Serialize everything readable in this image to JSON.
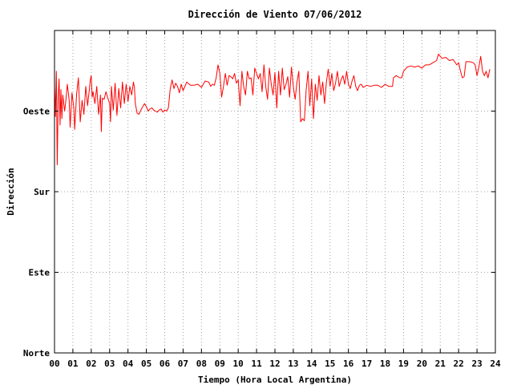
{
  "chart_data": {
    "type": "line",
    "title": "Dirección de Viento 07/06/2012",
    "xlabel": "Tiempo (Hora Local Argentina)",
    "ylabel": "Dirección",
    "xlim": [
      0,
      24
    ],
    "ylim": [
      0,
      300
    ],
    "x_ticks": [
      {
        "value": 0,
        "label": "00"
      },
      {
        "value": 1,
        "label": "01"
      },
      {
        "value": 2,
        "label": "02"
      },
      {
        "value": 3,
        "label": "03"
      },
      {
        "value": 4,
        "label": "04"
      },
      {
        "value": 5,
        "label": "05"
      },
      {
        "value": 6,
        "label": "06"
      },
      {
        "value": 7,
        "label": "07"
      },
      {
        "value": 8,
        "label": "08"
      },
      {
        "value": 9,
        "label": "09"
      },
      {
        "value": 10,
        "label": "10"
      },
      {
        "value": 11,
        "label": "11"
      },
      {
        "value": 12,
        "label": "12"
      },
      {
        "value": 13,
        "label": "13"
      },
      {
        "value": 14,
        "label": "14"
      },
      {
        "value": 15,
        "label": "15"
      },
      {
        "value": 16,
        "label": "16"
      },
      {
        "value": 17,
        "label": "17"
      },
      {
        "value": 18,
        "label": "18"
      },
      {
        "value": 19,
        "label": "19"
      },
      {
        "value": 20,
        "label": "20"
      },
      {
        "value": 21,
        "label": "21"
      },
      {
        "value": 22,
        "label": "22"
      },
      {
        "value": 23,
        "label": "23"
      },
      {
        "value": 24,
        "label": "24"
      }
    ],
    "y_ticks": [
      {
        "value": 0,
        "label": "Norte"
      },
      {
        "value": 75,
        "label": "Este"
      },
      {
        "value": 150,
        "label": "Sur"
      },
      {
        "value": 225,
        "label": "Oeste"
      }
    ],
    "grid": true,
    "line_color": "#ff0000",
    "series": [
      {
        "points": [
          [
            0.0,
            248
          ],
          [
            0.05,
            220
          ],
          [
            0.1,
            262
          ],
          [
            0.15,
            175
          ],
          [
            0.2,
            238
          ],
          [
            0.25,
            255
          ],
          [
            0.3,
            212
          ],
          [
            0.35,
            245
          ],
          [
            0.4,
            218
          ],
          [
            0.45,
            240
          ],
          [
            0.55,
            225
          ],
          [
            0.6,
            232
          ],
          [
            0.7,
            250
          ],
          [
            0.8,
            235
          ],
          [
            0.85,
            210
          ],
          [
            0.95,
            242
          ],
          [
            1.05,
            228
          ],
          [
            1.1,
            208
          ],
          [
            1.2,
            240
          ],
          [
            1.3,
            256
          ],
          [
            1.4,
            215
          ],
          [
            1.5,
            235
          ],
          [
            1.6,
            222
          ],
          [
            1.7,
            248
          ],
          [
            1.8,
            230
          ],
          [
            1.95,
            254
          ],
          [
            2.0,
            258
          ],
          [
            2.05,
            238
          ],
          [
            2.1,
            243
          ],
          [
            2.2,
            232
          ],
          [
            2.3,
            248
          ],
          [
            2.4,
            222
          ],
          [
            2.5,
            240
          ],
          [
            2.55,
            206
          ],
          [
            2.6,
            237
          ],
          [
            2.7,
            236
          ],
          [
            2.8,
            243
          ],
          [
            2.9,
            237
          ],
          [
            3.0,
            232
          ],
          [
            3.05,
            215
          ],
          [
            3.1,
            248
          ],
          [
            3.2,
            226
          ],
          [
            3.3,
            251
          ],
          [
            3.4,
            221
          ],
          [
            3.5,
            246
          ],
          [
            3.6,
            228
          ],
          [
            3.7,
            252
          ],
          [
            3.8,
            232
          ],
          [
            3.9,
            250
          ],
          [
            4.0,
            234
          ],
          [
            4.1,
            248
          ],
          [
            4.2,
            240
          ],
          [
            4.3,
            252
          ],
          [
            4.35,
            247
          ],
          [
            4.4,
            232
          ],
          [
            4.5,
            223
          ],
          [
            4.6,
            222
          ],
          [
            4.7,
            226
          ],
          [
            4.8,
            229
          ],
          [
            4.9,
            232
          ],
          [
            5.0,
            229
          ],
          [
            5.1,
            225
          ],
          [
            5.2,
            227
          ],
          [
            5.3,
            228
          ],
          [
            5.4,
            226
          ],
          [
            5.5,
            225
          ],
          [
            5.6,
            224
          ],
          [
            5.7,
            226
          ],
          [
            5.8,
            227
          ],
          [
            5.9,
            224
          ],
          [
            6.0,
            226
          ],
          [
            6.1,
            225
          ],
          [
            6.2,
            228
          ],
          [
            6.3,
            246
          ],
          [
            6.4,
            254
          ],
          [
            6.5,
            246
          ],
          [
            6.6,
            251
          ],
          [
            6.7,
            248
          ],
          [
            6.8,
            242
          ],
          [
            6.9,
            250
          ],
          [
            7.0,
            244
          ],
          [
            7.2,
            252
          ],
          [
            7.4,
            249
          ],
          [
            7.6,
            249
          ],
          [
            7.8,
            250
          ],
          [
            8.0,
            247
          ],
          [
            8.2,
            253
          ],
          [
            8.4,
            252
          ],
          [
            8.5,
            248
          ],
          [
            8.6,
            250
          ],
          [
            8.7,
            249
          ],
          [
            8.8,
            256
          ],
          [
            8.9,
            268
          ],
          [
            9.0,
            260
          ],
          [
            9.1,
            238
          ],
          [
            9.2,
            248
          ],
          [
            9.3,
            260
          ],
          [
            9.4,
            249
          ],
          [
            9.5,
            258
          ],
          [
            9.6,
            257
          ],
          [
            9.7,
            255
          ],
          [
            9.8,
            260
          ],
          [
            9.9,
            251
          ],
          [
            10.0,
            254
          ],
          [
            10.1,
            230
          ],
          [
            10.2,
            262
          ],
          [
            10.3,
            248
          ],
          [
            10.4,
            240
          ],
          [
            10.5,
            262
          ],
          [
            10.6,
            255
          ],
          [
            10.7,
            256
          ],
          [
            10.8,
            240
          ],
          [
            10.9,
            265
          ],
          [
            11.0,
            260
          ],
          [
            11.1,
            255
          ],
          [
            11.2,
            260
          ],
          [
            11.3,
            243
          ],
          [
            11.4,
            268
          ],
          [
            11.5,
            248
          ],
          [
            11.6,
            236
          ],
          [
            11.7,
            265
          ],
          [
            11.8,
            250
          ],
          [
            11.9,
            240
          ],
          [
            12.0,
            261
          ],
          [
            12.1,
            228
          ],
          [
            12.2,
            262
          ],
          [
            12.3,
            240
          ],
          [
            12.4,
            265
          ],
          [
            12.5,
            245
          ],
          [
            12.6,
            250
          ],
          [
            12.7,
            257
          ],
          [
            12.8,
            238
          ],
          [
            12.9,
            266
          ],
          [
            13.0,
            248
          ],
          [
            13.1,
            236
          ],
          [
            13.2,
            252
          ],
          [
            13.3,
            262
          ],
          [
            13.4,
            215
          ],
          [
            13.5,
            218
          ],
          [
            13.6,
            216
          ],
          [
            13.7,
            245
          ],
          [
            13.8,
            262
          ],
          [
            13.9,
            230
          ],
          [
            14.0,
            255
          ],
          [
            14.1,
            218
          ],
          [
            14.2,
            250
          ],
          [
            14.3,
            235
          ],
          [
            14.4,
            258
          ],
          [
            14.5,
            240
          ],
          [
            14.6,
            252
          ],
          [
            14.7,
            232
          ],
          [
            14.8,
            252
          ],
          [
            14.9,
            264
          ],
          [
            15.0,
            248
          ],
          [
            15.1,
            260
          ],
          [
            15.2,
            244
          ],
          [
            15.3,
            251
          ],
          [
            15.4,
            262
          ],
          [
            15.5,
            248
          ],
          [
            15.6,
            254
          ],
          [
            15.7,
            258
          ],
          [
            15.8,
            250
          ],
          [
            15.9,
            262
          ],
          [
            16.0,
            250
          ],
          [
            16.1,
            246
          ],
          [
            16.2,
            253
          ],
          [
            16.3,
            258
          ],
          [
            16.4,
            248
          ],
          [
            16.5,
            244
          ],
          [
            16.6,
            249
          ],
          [
            16.7,
            250
          ],
          [
            16.8,
            247
          ],
          [
            17.0,
            249
          ],
          [
            17.2,
            248
          ],
          [
            17.4,
            249
          ],
          [
            17.6,
            249
          ],
          [
            17.8,
            247
          ],
          [
            18.0,
            250
          ],
          [
            18.2,
            248
          ],
          [
            18.4,
            248
          ],
          [
            18.45,
            256
          ],
          [
            18.6,
            258
          ],
          [
            18.8,
            256
          ],
          [
            18.9,
            256
          ],
          [
            19.0,
            262
          ],
          [
            19.2,
            266
          ],
          [
            19.4,
            267
          ],
          [
            19.6,
            266
          ],
          [
            19.8,
            267
          ],
          [
            20.0,
            265
          ],
          [
            20.2,
            268
          ],
          [
            20.4,
            268
          ],
          [
            20.6,
            270
          ],
          [
            20.8,
            272
          ],
          [
            20.9,
            278
          ],
          [
            21.1,
            274
          ],
          [
            21.3,
            275
          ],
          [
            21.5,
            272
          ],
          [
            21.7,
            273
          ],
          [
            21.9,
            268
          ],
          [
            22.0,
            270
          ],
          [
            22.1,
            262
          ],
          [
            22.2,
            256
          ],
          [
            22.3,
            257
          ],
          [
            22.4,
            271
          ],
          [
            22.6,
            271
          ],
          [
            22.8,
            270
          ],
          [
            22.9,
            268
          ],
          [
            23.0,
            258
          ],
          [
            23.1,
            266
          ],
          [
            23.2,
            276
          ],
          [
            23.3,
            262
          ],
          [
            23.4,
            258
          ],
          [
            23.5,
            262
          ],
          [
            23.6,
            256
          ],
          [
            23.7,
            264
          ]
        ]
      }
    ]
  }
}
